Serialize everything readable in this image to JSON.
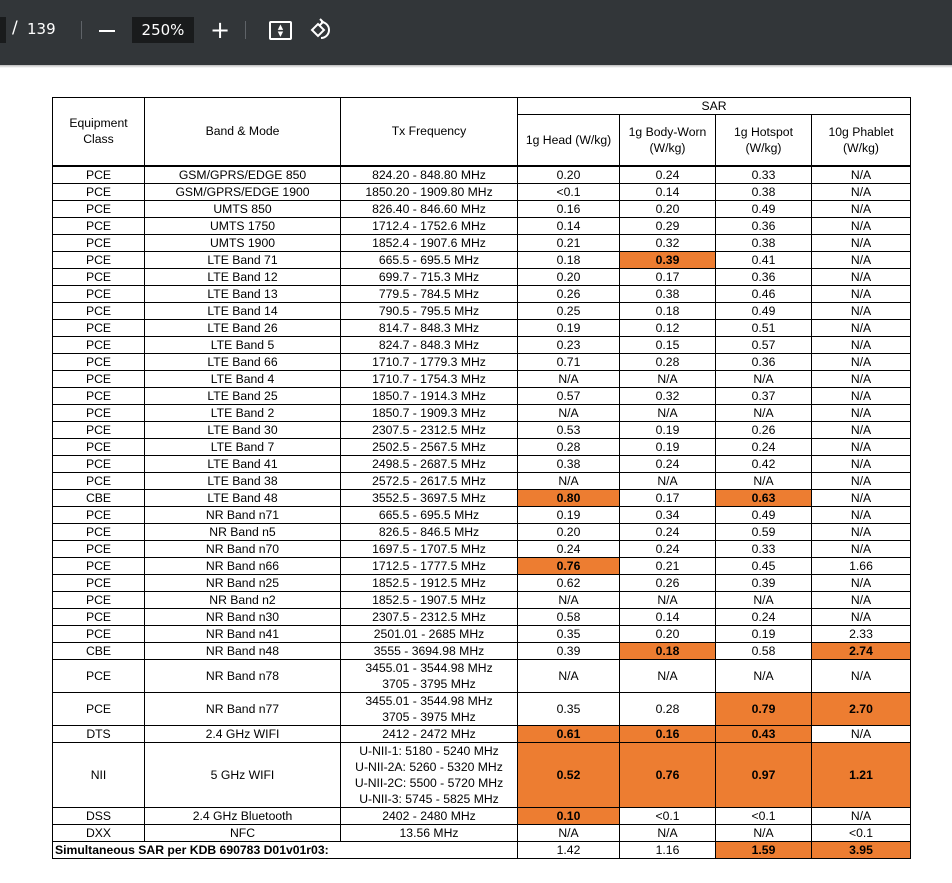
{
  "toolbar": {
    "page_separator": "/",
    "total_pages": "139",
    "zoom": "250%",
    "icons": [
      "zoom-out-icon",
      "zoom-in-icon",
      "fit-page-icon",
      "rotate-icon"
    ]
  },
  "highlight_color": "#ED7D31",
  "table": {
    "headers": {
      "equipment_class": "Equipment Class",
      "band_mode": "Band & Mode",
      "tx_frequency": "Tx Frequency",
      "sar": "SAR",
      "head": "1g Head (W/kg)",
      "body": "1g Body-Worn (W/kg)",
      "hotspot": "1g Hotspot (W/kg)",
      "phablet": "10g Phablet (W/kg)"
    },
    "rows": [
      {
        "cls": "PCE",
        "band": "GSM/GPRS/EDGE 850",
        "freq": [
          "824.20 - 848.80 MHz"
        ],
        "vals": [
          "0.20",
          "0.24",
          "0.33",
          "N/A"
        ],
        "hl": []
      },
      {
        "cls": "PCE",
        "band": "GSM/GPRS/EDGE 1900",
        "freq": [
          "1850.20 - 1909.80 MHz"
        ],
        "vals": [
          "<0.1",
          "0.14",
          "0.38",
          "N/A"
        ],
        "hl": []
      },
      {
        "cls": "PCE",
        "band": "UMTS 850",
        "freq": [
          "826.40 - 846.60 MHz"
        ],
        "vals": [
          "0.16",
          "0.20",
          "0.49",
          "N/A"
        ],
        "hl": []
      },
      {
        "cls": "PCE",
        "band": "UMTS 1750",
        "freq": [
          "1712.4 - 1752.6 MHz"
        ],
        "vals": [
          "0.14",
          "0.29",
          "0.36",
          "N/A"
        ],
        "hl": []
      },
      {
        "cls": "PCE",
        "band": "UMTS 1900",
        "freq": [
          "1852.4 - 1907.6 MHz"
        ],
        "vals": [
          "0.21",
          "0.32",
          "0.38",
          "N/A"
        ],
        "hl": []
      },
      {
        "cls": "PCE",
        "band": "LTE Band 71",
        "freq": [
          "665.5 - 695.5 MHz"
        ],
        "vals": [
          "0.18",
          "0.39",
          "0.41",
          "N/A"
        ],
        "hl": [
          1
        ]
      },
      {
        "cls": "PCE",
        "band": "LTE Band 12",
        "freq": [
          "699.7 - 715.3 MHz"
        ],
        "vals": [
          "0.20",
          "0.17",
          "0.36",
          "N/A"
        ],
        "hl": []
      },
      {
        "cls": "PCE",
        "band": "LTE Band 13",
        "freq": [
          "779.5 - 784.5 MHz"
        ],
        "vals": [
          "0.26",
          "0.38",
          "0.46",
          "N/A"
        ],
        "hl": []
      },
      {
        "cls": "PCE",
        "band": "LTE Band 14",
        "freq": [
          "790.5 - 795.5 MHz"
        ],
        "vals": [
          "0.25",
          "0.18",
          "0.49",
          "N/A"
        ],
        "hl": []
      },
      {
        "cls": "PCE",
        "band": "LTE Band 26",
        "freq": [
          "814.7 - 848.3 MHz"
        ],
        "vals": [
          "0.19",
          "0.12",
          "0.51",
          "N/A"
        ],
        "hl": []
      },
      {
        "cls": "PCE",
        "band": "LTE Band 5",
        "freq": [
          "824.7 - 848.3 MHz"
        ],
        "vals": [
          "0.23",
          "0.15",
          "0.57",
          "N/A"
        ],
        "hl": []
      },
      {
        "cls": "PCE",
        "band": "LTE Band 66",
        "freq": [
          "1710.7 - 1779.3 MHz"
        ],
        "vals": [
          "0.71",
          "0.28",
          "0.36",
          "N/A"
        ],
        "hl": []
      },
      {
        "cls": "PCE",
        "band": "LTE Band 4",
        "freq": [
          "1710.7 - 1754.3 MHz"
        ],
        "vals": [
          "N/A",
          "N/A",
          "N/A",
          "N/A"
        ],
        "hl": []
      },
      {
        "cls": "PCE",
        "band": "LTE Band 25",
        "freq": [
          "1850.7 - 1914.3 MHz"
        ],
        "vals": [
          "0.57",
          "0.32",
          "0.37",
          "N/A"
        ],
        "hl": []
      },
      {
        "cls": "PCE",
        "band": "LTE Band 2",
        "freq": [
          "1850.7 - 1909.3 MHz"
        ],
        "vals": [
          "N/A",
          "N/A",
          "N/A",
          "N/A"
        ],
        "hl": []
      },
      {
        "cls": "PCE",
        "band": "LTE Band 30",
        "freq": [
          "2307.5 - 2312.5 MHz"
        ],
        "vals": [
          "0.53",
          "0.19",
          "0.26",
          "N/A"
        ],
        "hl": []
      },
      {
        "cls": "PCE",
        "band": "LTE Band 7",
        "freq": [
          "2502.5 - 2567.5 MHz"
        ],
        "vals": [
          "0.28",
          "0.19",
          "0.24",
          "N/A"
        ],
        "hl": []
      },
      {
        "cls": "PCE",
        "band": "LTE Band 41",
        "freq": [
          "2498.5 - 2687.5 MHz"
        ],
        "vals": [
          "0.38",
          "0.24",
          "0.42",
          "N/A"
        ],
        "hl": []
      },
      {
        "cls": "PCE",
        "band": "LTE Band 38",
        "freq": [
          "2572.5 - 2617.5 MHz"
        ],
        "vals": [
          "N/A",
          "N/A",
          "N/A",
          "N/A"
        ],
        "hl": []
      },
      {
        "cls": "CBE",
        "band": "LTE Band 48",
        "freq": [
          "3552.5 - 3697.5 MHz"
        ],
        "vals": [
          "0.80",
          "0.17",
          "0.63",
          "N/A"
        ],
        "hl": [
          0,
          2
        ]
      },
      {
        "cls": "PCE",
        "band": "NR Band n71",
        "freq": [
          "665.5 - 695.5 MHz"
        ],
        "vals": [
          "0.19",
          "0.34",
          "0.49",
          "N/A"
        ],
        "hl": []
      },
      {
        "cls": "PCE",
        "band": "NR Band n5",
        "freq": [
          "826.5 - 846.5 MHz"
        ],
        "vals": [
          "0.20",
          "0.24",
          "0.59",
          "N/A"
        ],
        "hl": []
      },
      {
        "cls": "PCE",
        "band": "NR Band n70",
        "freq": [
          "1697.5 - 1707.5 MHz"
        ],
        "vals": [
          "0.24",
          "0.24",
          "0.33",
          "N/A"
        ],
        "hl": []
      },
      {
        "cls": "PCE",
        "band": "NR Band n66",
        "freq": [
          "1712.5 - 1777.5 MHz"
        ],
        "vals": [
          "0.76",
          "0.21",
          "0.45",
          "1.66"
        ],
        "hl": [
          0
        ]
      },
      {
        "cls": "PCE",
        "band": "NR Band n25",
        "freq": [
          "1852.5 - 1912.5 MHz"
        ],
        "vals": [
          "0.62",
          "0.26",
          "0.39",
          "N/A"
        ],
        "hl": []
      },
      {
        "cls": "PCE",
        "band": "NR Band n2",
        "freq": [
          "1852.5 - 1907.5 MHz"
        ],
        "vals": [
          "N/A",
          "N/A",
          "N/A",
          "N/A"
        ],
        "hl": []
      },
      {
        "cls": "PCE",
        "band": "NR Band n30",
        "freq": [
          "2307.5 - 2312.5 MHz"
        ],
        "vals": [
          "0.58",
          "0.14",
          "0.24",
          "N/A"
        ],
        "hl": []
      },
      {
        "cls": "PCE",
        "band": "NR Band n41",
        "freq": [
          "2501.01 - 2685 MHz"
        ],
        "vals": [
          "0.35",
          "0.20",
          "0.19",
          "2.33"
        ],
        "hl": []
      },
      {
        "cls": "CBE",
        "band": "NR Band n48",
        "freq": [
          "3555 - 3694.98 MHz"
        ],
        "vals": [
          "0.39",
          "0.18",
          "0.58",
          "2.74"
        ],
        "hl": [
          1,
          3
        ]
      },
      {
        "cls": "PCE",
        "band": "NR Band n78",
        "freq": [
          "3455.01 - 3544.98 MHz",
          "3705 - 3795 MHz"
        ],
        "vals": [
          "N/A",
          "N/A",
          "N/A",
          "N/A"
        ],
        "hl": []
      },
      {
        "cls": "PCE",
        "band": "NR Band n77",
        "freq": [
          "3455.01 - 3544.98 MHz",
          "3705 - 3975 MHz"
        ],
        "vals": [
          "0.35",
          "0.28",
          "0.79",
          "2.70"
        ],
        "hl": [
          2,
          3
        ]
      },
      {
        "cls": "DTS",
        "band": "2.4 GHz WIFI",
        "freq": [
          "2412 - 2472 MHz"
        ],
        "vals": [
          "0.61",
          "0.16",
          "0.43",
          "N/A"
        ],
        "hl": [
          0,
          1,
          2
        ]
      },
      {
        "cls": "NII",
        "band": "5 GHz WIFI",
        "freq": [
          "U-NII-1: 5180 - 5240 MHz",
          "U-NII-2A: 5260 - 5320 MHz",
          "U-NII-2C: 5500 - 5720 MHz",
          "U-NII-3: 5745 - 5825 MHz"
        ],
        "vals": [
          "0.52",
          "0.76",
          "0.97",
          "1.21"
        ],
        "hl": [
          0,
          1,
          2,
          3
        ]
      },
      {
        "cls": "DSS",
        "band": "2.4 GHz Bluetooth",
        "freq": [
          "2402 - 2480 MHz"
        ],
        "vals": [
          "0.10",
          "<0.1",
          "<0.1",
          "N/A"
        ],
        "hl": [
          0
        ]
      },
      {
        "cls": "DXX",
        "band": "NFC",
        "freq": [
          "13.56 MHz"
        ],
        "vals": [
          "N/A",
          "N/A",
          "N/A",
          "<0.1"
        ],
        "hl": []
      }
    ],
    "simultaneous": {
      "label": "Simultaneous SAR per KDB 690783 D01v01r03:",
      "vals": [
        "1.42",
        "1.16",
        "1.59",
        "3.95"
      ],
      "hl": [
        2,
        3
      ]
    }
  }
}
